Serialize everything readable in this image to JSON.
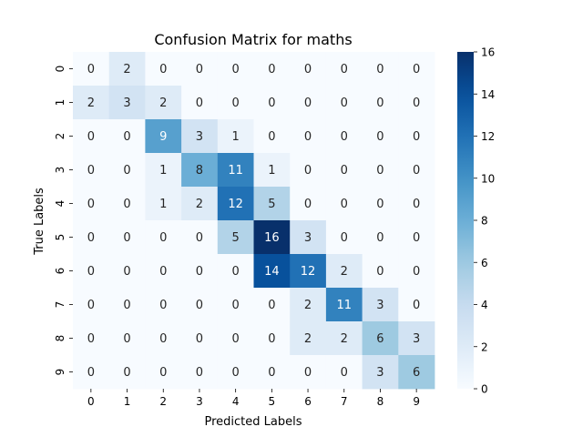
{
  "chart_data": {
    "type": "heatmap",
    "title": "Confusion Matrix for maths",
    "xlabel": "Predicted Labels",
    "ylabel": "True Labels",
    "x_categories": [
      "0",
      "1",
      "2",
      "3",
      "4",
      "5",
      "6",
      "7",
      "8",
      "9"
    ],
    "y_categories": [
      "0",
      "1",
      "2",
      "3",
      "4",
      "5",
      "6",
      "7",
      "8",
      "9"
    ],
    "values": [
      [
        0,
        2,
        0,
        0,
        0,
        0,
        0,
        0,
        0,
        0
      ],
      [
        2,
        3,
        2,
        0,
        0,
        0,
        0,
        0,
        0,
        0
      ],
      [
        0,
        0,
        9,
        3,
        1,
        0,
        0,
        0,
        0,
        0
      ],
      [
        0,
        0,
        1,
        8,
        11,
        1,
        0,
        0,
        0,
        0
      ],
      [
        0,
        0,
        1,
        2,
        12,
        5,
        0,
        0,
        0,
        0
      ],
      [
        0,
        0,
        0,
        0,
        5,
        16,
        3,
        0,
        0,
        0
      ],
      [
        0,
        0,
        0,
        0,
        0,
        14,
        12,
        2,
        0,
        0
      ],
      [
        0,
        0,
        0,
        0,
        0,
        0,
        2,
        11,
        3,
        0
      ],
      [
        0,
        0,
        0,
        0,
        0,
        0,
        2,
        2,
        6,
        3
      ],
      [
        0,
        0,
        0,
        0,
        0,
        0,
        0,
        0,
        3,
        6
      ]
    ],
    "colormap": "Blues",
    "colorbar": {
      "range": [
        0,
        16
      ],
      "ticks": [
        "0",
        "2",
        "4",
        "6",
        "8",
        "10",
        "12",
        "14",
        "16"
      ]
    },
    "annotations": true,
    "grid": false
  }
}
